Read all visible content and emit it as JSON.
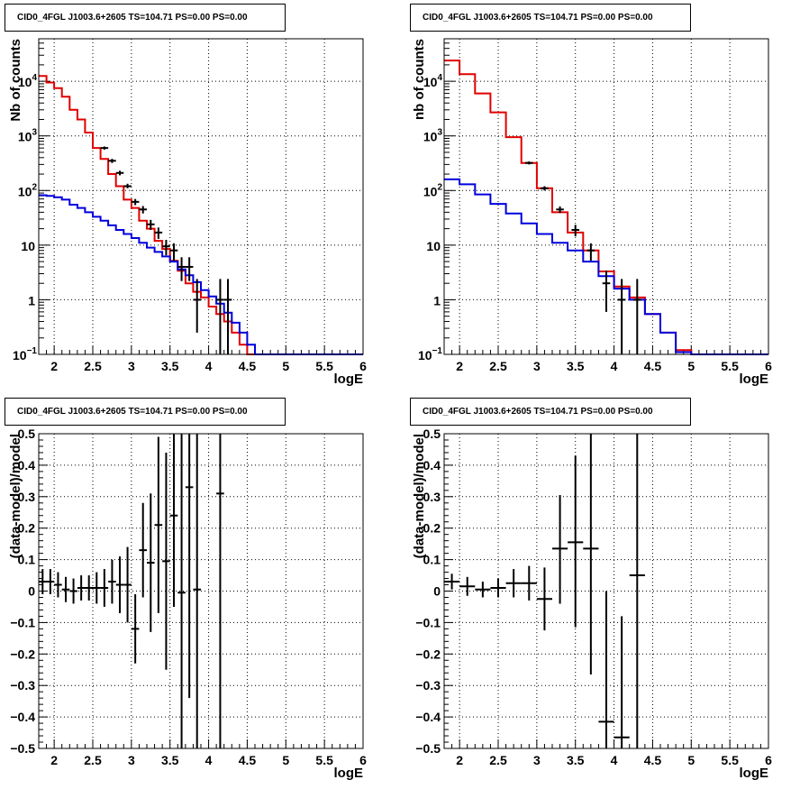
{
  "chart_data": [
    {
      "type": "line",
      "title": "CID0_4FGL J1003.6+2605 TS=104.71 PS=0.00 PS=0.00",
      "xlabel": "logE",
      "ylabel": "Nb of counts",
      "xlim": [
        1.8,
        6.0
      ],
      "ylim": [
        0.1,
        60000
      ],
      "yscale": "log",
      "grid": true,
      "x_ticks": [
        "2",
        "2.5",
        "3",
        "3.5",
        "4",
        "4.5",
        "5",
        "5.5",
        "6"
      ],
      "y_ticks": [
        {
          "value": 0.1,
          "label": "10",
          "sup": "−1"
        },
        {
          "value": 1,
          "label": "1",
          "sup": ""
        },
        {
          "value": 10,
          "label": "10",
          "sup": ""
        },
        {
          "value": 100,
          "label": "10",
          "sup": "2"
        },
        {
          "value": 1000,
          "label": "10",
          "sup": "3"
        },
        {
          "value": 10000,
          "label": "10",
          "sup": "4"
        }
      ],
      "bin_edges": [
        1.8,
        1.9,
        2.0,
        2.1,
        2.2,
        2.3,
        2.4,
        2.5,
        2.6,
        2.7,
        2.8,
        2.9,
        3.0,
        3.1,
        3.2,
        3.3,
        3.4,
        3.5,
        3.6,
        3.7,
        3.8,
        3.9,
        4.0,
        4.1,
        4.2,
        4.3,
        4.4,
        4.5,
        4.6,
        4.7,
        4.8,
        4.9,
        5.0,
        5.1,
        5.2,
        5.3,
        5.4,
        5.5,
        5.6,
        5.7,
        5.8,
        5.9,
        6.0
      ],
      "series": [
        {
          "color": "#e00000",
          "values": [
            12500,
            9500,
            7500,
            5200,
            3000,
            2000,
            1150,
            600,
            380,
            200,
            120,
            68,
            48,
            28,
            20,
            12,
            8.5,
            5.2,
            3.4,
            2.0,
            1.4,
            1.1,
            0.75,
            0.55,
            0.4,
            0.25,
            0.15,
            0.1,
            0.1,
            0.1,
            0.1,
            0.1,
            0.1,
            0.1,
            0.1,
            0.1,
            0.1,
            0.1,
            0.1,
            0.1,
            0.1,
            0.1
          ]
        },
        {
          "color": "#0000dd",
          "values": [
            82,
            80,
            75,
            68,
            55,
            48,
            40,
            33,
            28,
            23,
            19,
            16,
            13.5,
            11,
            9,
            7.5,
            6.2,
            5.0,
            3.6,
            2.8,
            2.1,
            1.5,
            1.15,
            0.85,
            0.58,
            0.38,
            0.25,
            0.15,
            0.1,
            0.1,
            0.1,
            0.1,
            0.1,
            0.1,
            0.1,
            0.1,
            0.1,
            0.1,
            0.1,
            0.1,
            0.1,
            0.1
          ]
        }
      ],
      "points": [
        {
          "x": 2.65,
          "y": 600,
          "lo": 560,
          "hi": 640
        },
        {
          "x": 2.75,
          "y": 350,
          "lo": 320,
          "hi": 380
        },
        {
          "x": 2.85,
          "y": 210,
          "lo": 190,
          "hi": 230
        },
        {
          "x": 2.95,
          "y": 120,
          "lo": 110,
          "hi": 133
        },
        {
          "x": 3.05,
          "y": 62,
          "lo": 54,
          "hi": 70
        },
        {
          "x": 3.15,
          "y": 45,
          "lo": 38,
          "hi": 52
        },
        {
          "x": 3.25,
          "y": 24,
          "lo": 19,
          "hi": 29
        },
        {
          "x": 3.35,
          "y": 17,
          "lo": 13,
          "hi": 21
        },
        {
          "x": 3.45,
          "y": 9.5,
          "lo": 6.5,
          "hi": 12.5
        },
        {
          "x": 3.55,
          "y": 8,
          "lo": 5.2,
          "hi": 10.8
        },
        {
          "x": 3.65,
          "y": 4,
          "lo": 2.2,
          "hi": 6.0
        },
        {
          "x": 3.75,
          "y": 4,
          "lo": 2.2,
          "hi": 6.0
        },
        {
          "x": 3.85,
          "y": 1,
          "lo": 0.25,
          "hi": 2.4
        },
        {
          "x": 4.15,
          "y": 1,
          "lo": 0.1,
          "hi": 2.4
        },
        {
          "x": 4.25,
          "y": 1,
          "lo": 0.1,
          "hi": 2.4
        }
      ]
    },
    {
      "type": "line",
      "title": "CID0_4FGL J1003.6+2605 TS=104.71 PS=0.00 PS=0.00",
      "xlabel": "logE",
      "ylabel": "nb of counts",
      "xlim": [
        1.8,
        6.0
      ],
      "ylim": [
        0.1,
        60000
      ],
      "yscale": "log",
      "grid": true,
      "x_ticks": [
        "2",
        "2.5",
        "3",
        "3.5",
        "4",
        "4.5",
        "5",
        "5.5",
        "6"
      ],
      "y_ticks": [
        {
          "value": 0.1,
          "label": "10",
          "sup": "−1"
        },
        {
          "value": 1,
          "label": "1",
          "sup": ""
        },
        {
          "value": 10,
          "label": "10",
          "sup": ""
        },
        {
          "value": 100,
          "label": "10",
          "sup": "2"
        },
        {
          "value": 1000,
          "label": "10",
          "sup": "3"
        },
        {
          "value": 10000,
          "label": "10",
          "sup": "4"
        }
      ],
      "bin_edges": [
        1.8,
        2.0,
        2.2,
        2.4,
        2.6,
        2.8,
        3.0,
        3.2,
        3.4,
        3.6,
        3.8,
        4.0,
        4.2,
        4.4,
        4.6,
        4.8,
        5.0,
        5.2,
        5.4,
        5.6,
        5.8,
        6.0
      ],
      "series": [
        {
          "color": "#e00000",
          "values": [
            24000,
            13500,
            6000,
            2700,
            950,
            320,
            110,
            40,
            17,
            8,
            3.3,
            1.75,
            1.1,
            0.55,
            0.25,
            0.12,
            0.1,
            0.1,
            0.1,
            0.1,
            0.1
          ]
        },
        {
          "color": "#0000dd",
          "values": [
            160,
            130,
            85,
            57,
            38,
            25,
            16,
            11,
            8,
            5,
            2.7,
            1.6,
            1.0,
            0.55,
            0.25,
            0.11,
            0.1,
            0.1,
            0.1,
            0.1,
            0.1
          ]
        }
      ],
      "points": [
        {
          "x": 2.9,
          "y": 320,
          "lo": 300,
          "hi": 340
        },
        {
          "x": 3.1,
          "y": 110,
          "lo": 100,
          "hi": 120
        },
        {
          "x": 3.3,
          "y": 45,
          "lo": 39,
          "hi": 51
        },
        {
          "x": 3.5,
          "y": 19,
          "lo": 14.5,
          "hi": 23.5
        },
        {
          "x": 3.7,
          "y": 8,
          "lo": 5.2,
          "hi": 10.8
        },
        {
          "x": 3.9,
          "y": 2,
          "lo": 0.6,
          "hi": 3.4
        },
        {
          "x": 4.1,
          "y": 1,
          "lo": 0.1,
          "hi": 2.4
        },
        {
          "x": 4.3,
          "y": 1,
          "lo": 0.1,
          "hi": 2.4
        }
      ]
    },
    {
      "type": "scatter",
      "title": "CID0_4FGL J1003.6+2605 TS=104.71 PS=0.00 PS=0.00",
      "xlabel": "logE",
      "ylabel": "(data-model)/model",
      "xlim": [
        1.8,
        6.0
      ],
      "ylim": [
        -0.5,
        0.5
      ],
      "grid": true,
      "x_ticks": [
        "2",
        "2.5",
        "3",
        "3.5",
        "4",
        "4.5",
        "5",
        "5.5",
        "6"
      ],
      "y_ticks": [
        "-0.5",
        "-0.4",
        "-0.3",
        "-0.2",
        "-0.1",
        "0",
        "0.1",
        "0.2",
        "0.3",
        "0.4",
        "0.5"
      ],
      "xerr": 0.05,
      "points": [
        {
          "x": 1.85,
          "y": 0.03,
          "lo": -0.01,
          "hi": 0.07
        },
        {
          "x": 1.95,
          "y": 0.03,
          "lo": -0.01,
          "hi": 0.07
        },
        {
          "x": 2.05,
          "y": 0.02,
          "lo": -0.02,
          "hi": 0.06
        },
        {
          "x": 2.15,
          "y": 0.005,
          "lo": -0.035,
          "hi": 0.045
        },
        {
          "x": 2.25,
          "y": 0.0,
          "lo": -0.04,
          "hi": 0.04
        },
        {
          "x": 2.35,
          "y": 0.01,
          "lo": -0.03,
          "hi": 0.05
        },
        {
          "x": 2.45,
          "y": 0.01,
          "lo": -0.03,
          "hi": 0.05
        },
        {
          "x": 2.55,
          "y": 0.01,
          "lo": -0.04,
          "hi": 0.06
        },
        {
          "x": 2.65,
          "y": 0.01,
          "lo": -0.05,
          "hi": 0.07
        },
        {
          "x": 2.75,
          "y": 0.03,
          "lo": -0.04,
          "hi": 0.1
        },
        {
          "x": 2.85,
          "y": 0.02,
          "lo": -0.07,
          "hi": 0.11
        },
        {
          "x": 2.95,
          "y": 0.02,
          "lo": -0.1,
          "hi": 0.14
        },
        {
          "x": 3.05,
          "y": -0.12,
          "lo": -0.23,
          "hi": -0.01
        },
        {
          "x": 3.15,
          "y": 0.13,
          "lo": -0.02,
          "hi": 0.28
        },
        {
          "x": 3.25,
          "y": 0.09,
          "lo": -0.13,
          "hi": 0.31
        },
        {
          "x": 3.35,
          "y": 0.21,
          "lo": -0.07,
          "hi": 0.49
        },
        {
          "x": 3.45,
          "y": 0.095,
          "lo": -0.25,
          "hi": 0.44
        },
        {
          "x": 3.55,
          "y": 0.24,
          "lo": -0.05,
          "hi": 0.5
        },
        {
          "x": 3.65,
          "y": -0.005,
          "lo": -0.5,
          "hi": 0.5
        },
        {
          "x": 3.75,
          "y": 0.33,
          "lo": -0.34,
          "hi": 0.5
        },
        {
          "x": 3.85,
          "y": 0.005,
          "lo": -0.5,
          "hi": 0.5
        },
        {
          "x": 4.15,
          "y": 0.31,
          "lo": -0.5,
          "hi": 0.5
        }
      ]
    },
    {
      "type": "scatter",
      "title": "CID0_4FGL J1003.6+2605 TS=104.71 PS=0.00 PS=0.00",
      "xlabel": "logE",
      "ylabel": "(data-model)/model",
      "xlim": [
        1.8,
        6.0
      ],
      "ylim": [
        -0.5,
        0.5
      ],
      "grid": true,
      "x_ticks": [
        "2",
        "2.5",
        "3",
        "3.5",
        "4",
        "4.5",
        "5",
        "5.5",
        "6"
      ],
      "y_ticks": [
        "-0.5",
        "-0.4",
        "-0.3",
        "-0.2",
        "-0.1",
        "0",
        "0.1",
        "0.2",
        "0.3",
        "0.4",
        "0.5"
      ],
      "xerr": 0.1,
      "points": [
        {
          "x": 1.9,
          "y": 0.03,
          "lo": 0.005,
          "hi": 0.055
        },
        {
          "x": 2.1,
          "y": 0.015,
          "lo": -0.015,
          "hi": 0.045
        },
        {
          "x": 2.3,
          "y": 0.005,
          "lo": -0.02,
          "hi": 0.03
        },
        {
          "x": 2.5,
          "y": 0.01,
          "lo": -0.02,
          "hi": 0.04
        },
        {
          "x": 2.7,
          "y": 0.025,
          "lo": -0.02,
          "hi": 0.07
        },
        {
          "x": 2.9,
          "y": 0.025,
          "lo": -0.03,
          "hi": 0.08
        },
        {
          "x": 3.1,
          "y": -0.025,
          "lo": -0.125,
          "hi": 0.075
        },
        {
          "x": 3.3,
          "y": 0.135,
          "lo": -0.04,
          "hi": 0.305
        },
        {
          "x": 3.5,
          "y": 0.155,
          "lo": -0.115,
          "hi": 0.43
        },
        {
          "x": 3.7,
          "y": 0.135,
          "lo": -0.265,
          "hi": 0.5
        },
        {
          "x": 3.9,
          "y": -0.415,
          "lo": -0.5,
          "hi": 0.0
        },
        {
          "x": 4.1,
          "y": -0.465,
          "lo": -0.5,
          "hi": -0.08
        },
        {
          "x": 4.3,
          "y": 0.05,
          "lo": -0.5,
          "hi": 0.5
        }
      ]
    }
  ]
}
